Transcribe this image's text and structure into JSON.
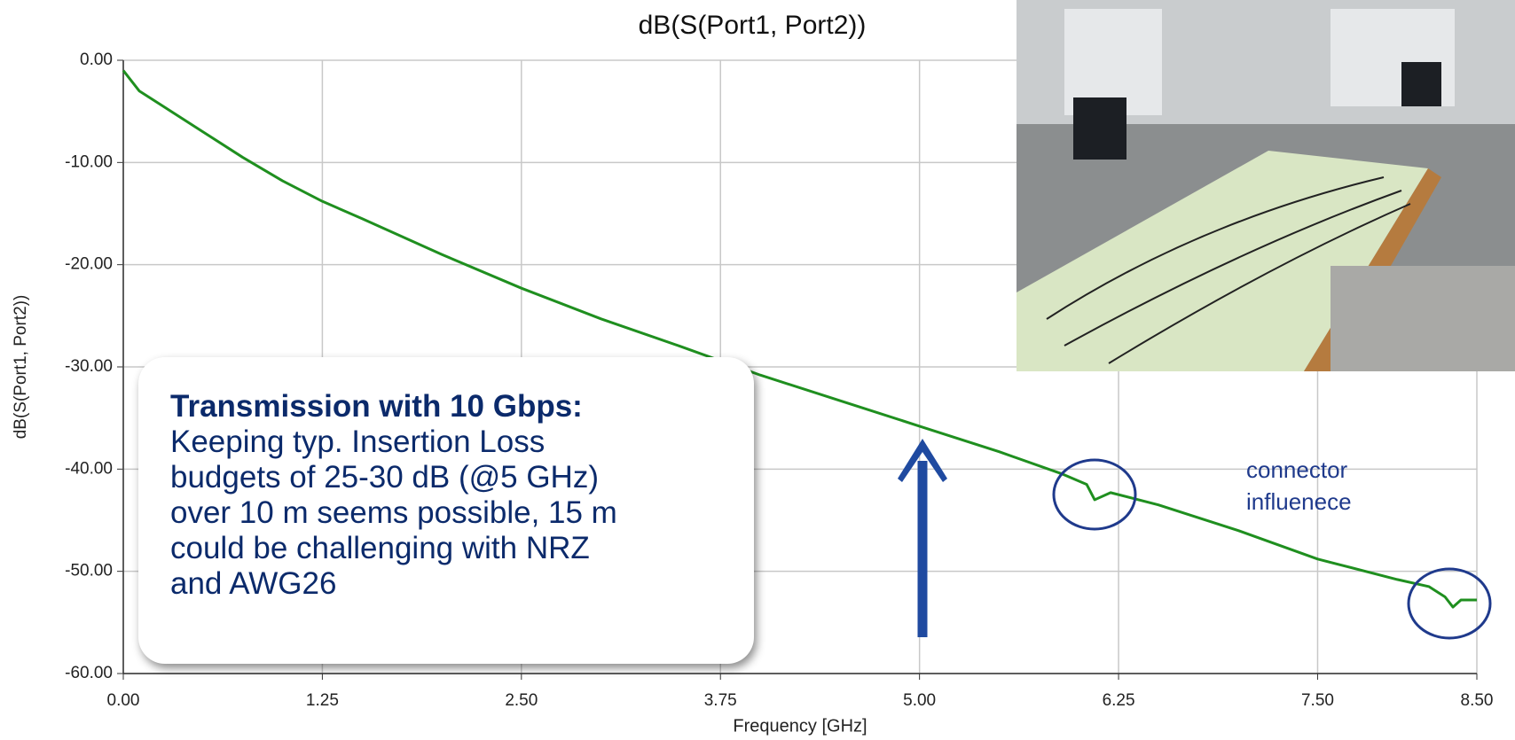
{
  "chart_data": {
    "type": "line",
    "title": "dB(S(Port1, Port2))",
    "x_label": "Frequency [GHz]",
    "y_label": "dB(S(Port1, Port2))",
    "x": [
      0,
      0.1,
      0.25,
      0.5,
      0.75,
      1.0,
      1.25,
      1.5,
      2.0,
      2.5,
      3.0,
      3.5,
      4.0,
      4.5,
      5.0,
      5.5,
      5.9,
      6.05,
      6.1,
      6.2,
      6.5,
      7.0,
      7.5,
      8.0,
      8.2,
      8.3,
      8.35,
      8.4,
      8.5
    ],
    "series": [
      {
        "name": "dB(S(Port1, Port2))",
        "color": "#1f8f1f",
        "values": [
          -1,
          -3,
          -4.5,
          -7,
          -9.5,
          -11.8,
          -13.8,
          -15.5,
          -19,
          -22.3,
          -25.3,
          -28,
          -30.8,
          -33.3,
          -35.8,
          -38.3,
          -40.5,
          -41.5,
          -43,
          -42.3,
          -43.5,
          -46,
          -48.8,
          -50.8,
          -51.5,
          -52.5,
          -53.5,
          -52.8,
          -52.8
        ]
      }
    ],
    "xlim": [
      0,
      8.5
    ],
    "ylim": [
      -60,
      0
    ],
    "xticks": [
      {
        "value": 0,
        "label": "0.00"
      },
      {
        "value": 1.25,
        "label": "1.25"
      },
      {
        "value": 2.5,
        "label": "2.50"
      },
      {
        "value": 3.75,
        "label": "3.75"
      },
      {
        "value": 5,
        "label": "5.00"
      },
      {
        "value": 6.25,
        "label": "6.25"
      },
      {
        "value": 7.5,
        "label": "7.50"
      },
      {
        "value": 8.5,
        "label": "8.50"
      }
    ],
    "yticks": [
      {
        "value": 0,
        "label": "0.00"
      },
      {
        "value": -10,
        "label": "-10.00"
      },
      {
        "value": -20,
        "label": "-20.00"
      },
      {
        "value": -30,
        "label": "-30.00"
      },
      {
        "value": -40,
        "label": "-40.00"
      },
      {
        "value": -50,
        "label": "-50.00"
      },
      {
        "value": -60,
        "label": "-60.00"
      }
    ],
    "grid": true,
    "annotations": {
      "note_title": "Transmission with 10 Gbps:",
      "note_lines": [
        "Keeping typ. Insertion Loss",
        "budgets of 25-30 dB (@5 GHz)",
        "over 10 m seems possible, 15 m",
        "could be challenging with NRZ",
        "and AWG26"
      ],
      "connector": [
        "connector",
        "influenece"
      ]
    }
  }
}
